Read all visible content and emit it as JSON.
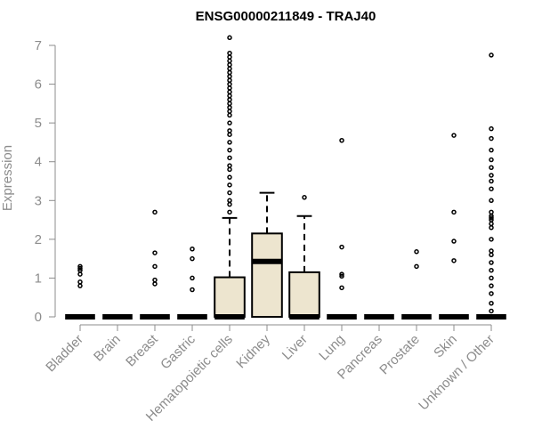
{
  "chart_data": {
    "type": "box",
    "title": "ENSG00000211849 - TRAJ40",
    "xlabel": "",
    "ylabel": "Expression",
    "ylim": [
      0,
      7.2
    ],
    "yticks": [
      0,
      1,
      2,
      3,
      4,
      5,
      6,
      7
    ],
    "categories": [
      "Bladder",
      "Brain",
      "Breast",
      "Gastric",
      "Hematopoietic cells",
      "Kidney",
      "Liver",
      "Lung",
      "Pancreas",
      "Prostate",
      "Skin",
      "Unknown / Other"
    ],
    "box_fill": "#ede5cf",
    "boxes": [
      {
        "category": "Bladder",
        "q1": 0,
        "median": 0,
        "q3": 0,
        "whisker_low": 0,
        "whisker_high": 0,
        "outliers": [
          0.8,
          0.9,
          1.1,
          1.2,
          1.25,
          1.3
        ]
      },
      {
        "category": "Brain",
        "q1": 0,
        "median": 0,
        "q3": 0,
        "whisker_low": 0,
        "whisker_high": 0,
        "outliers": []
      },
      {
        "category": "Breast",
        "q1": 0,
        "median": 0,
        "q3": 0,
        "whisker_low": 0,
        "whisker_high": 0,
        "outliers": [
          0.85,
          0.95,
          1.3,
          1.65,
          2.7
        ]
      },
      {
        "category": "Gastric",
        "q1": 0,
        "median": 0,
        "q3": 0,
        "whisker_low": 0,
        "whisker_high": 0,
        "outliers": [
          0.7,
          1.0,
          1.5,
          1.75
        ]
      },
      {
        "category": "Hematopoietic cells",
        "q1": 0,
        "median": 0,
        "q3": 1.02,
        "whisker_low": 0,
        "whisker_high": 2.55,
        "outliers": [
          2.7,
          2.9,
          3.0,
          3.2,
          3.4,
          3.6,
          3.8,
          3.9,
          4.1,
          4.3,
          4.5,
          4.7,
          4.8,
          5.0,
          5.2,
          5.3,
          5.4,
          5.5,
          5.6,
          5.7,
          5.8,
          5.9,
          6.0,
          6.1,
          6.2,
          6.3,
          6.4,
          6.5,
          6.6,
          6.7,
          6.8,
          7.2
        ]
      },
      {
        "category": "Kidney",
        "q1": 0,
        "median": 1.43,
        "q3": 2.15,
        "whisker_low": 0,
        "whisker_high": 3.2,
        "outliers": []
      },
      {
        "category": "Liver",
        "q1": 0,
        "median": 0,
        "q3": 1.15,
        "whisker_low": 0,
        "whisker_high": 2.6,
        "outliers": [
          3.08
        ]
      },
      {
        "category": "Lung",
        "q1": 0,
        "median": 0,
        "q3": 0,
        "whisker_low": 0,
        "whisker_high": 0,
        "outliers": [
          0.75,
          1.05,
          1.1,
          1.8,
          4.55
        ]
      },
      {
        "category": "Pancreas",
        "q1": 0,
        "median": 0,
        "q3": 0,
        "whisker_low": 0,
        "whisker_high": 0,
        "outliers": []
      },
      {
        "category": "Prostate",
        "q1": 0,
        "median": 0,
        "q3": 0,
        "whisker_low": 0,
        "whisker_high": 0,
        "outliers": [
          1.3,
          1.68
        ]
      },
      {
        "category": "Skin",
        "q1": 0,
        "median": 0,
        "q3": 0,
        "whisker_low": 0,
        "whisker_high": 0,
        "outliers": [
          1.45,
          1.95,
          2.7,
          4.68
        ]
      },
      {
        "category": "Unknown / Other",
        "q1": 0,
        "median": 0,
        "q3": 0,
        "whisker_low": 0,
        "whisker_high": 0,
        "outliers": [
          0.15,
          0.35,
          0.6,
          0.8,
          1.0,
          1.2,
          1.4,
          1.6,
          1.7,
          2.0,
          2.3,
          2.4,
          2.5,
          2.55,
          2.6,
          2.7,
          3.0,
          3.3,
          3.5,
          3.65,
          3.85,
          4.05,
          4.3,
          4.6,
          4.85,
          6.75
        ]
      }
    ]
  }
}
